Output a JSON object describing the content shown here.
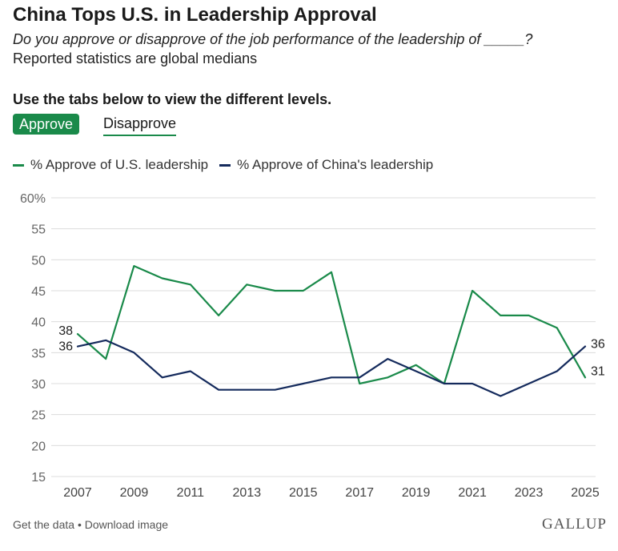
{
  "header": {
    "title": "China Tops U.S. in Leadership Approval",
    "subtitle": "Do you approve or disapprove of the job performance of the leadership of _____?",
    "note": "Reported statistics are global medians"
  },
  "tabs": {
    "heading": "Use the tabs below to view the different levels.",
    "items": [
      {
        "label": "Approve",
        "active": true
      },
      {
        "label": "Disapprove",
        "active": false
      }
    ]
  },
  "footer": {
    "get_data": "Get the data",
    "separator": " • ",
    "download": "Download image",
    "brand": "GALLUP"
  },
  "colors": {
    "us": "#1a8a4a",
    "china": "#142a5c",
    "grid": "#dcdcdc",
    "axis_text": "#666666"
  },
  "chart_data": {
    "type": "line",
    "x": [
      2007,
      2008,
      2009,
      2010,
      2011,
      2012,
      2013,
      2014,
      2015,
      2016,
      2017,
      2018,
      2019,
      2020,
      2021,
      2022,
      2023,
      2024,
      2025
    ],
    "x_tick_labels": [
      "2007",
      "2009",
      "2011",
      "2013",
      "2015",
      "2017",
      "2019",
      "2021",
      "2023",
      "2025"
    ],
    "y_ticks": [
      15,
      20,
      25,
      30,
      35,
      40,
      45,
      50,
      55,
      60
    ],
    "y_tick_labels": [
      "15",
      "20",
      "25",
      "30",
      "35",
      "40",
      "45",
      "50",
      "55",
      "60%"
    ],
    "ylim": [
      15,
      60
    ],
    "grid": true,
    "legend_placement": "top-left",
    "series": [
      {
        "name": "% Approve of U.S. leadership",
        "color": "#1a8a4a",
        "values": [
          38,
          34,
          49,
          47,
          46,
          41,
          46,
          45,
          45,
          48,
          30,
          31,
          33,
          30,
          45,
          41,
          41,
          39,
          31
        ],
        "start_label": "38",
        "end_label": "31"
      },
      {
        "name": "% Approve of China's leadership",
        "color": "#142a5c",
        "values": [
          36,
          37,
          35,
          31,
          32,
          29,
          29,
          29,
          30,
          31,
          31,
          34,
          32,
          30,
          30,
          28,
          30,
          32,
          36
        ],
        "start_label": "36",
        "end_label": "36"
      }
    ]
  }
}
